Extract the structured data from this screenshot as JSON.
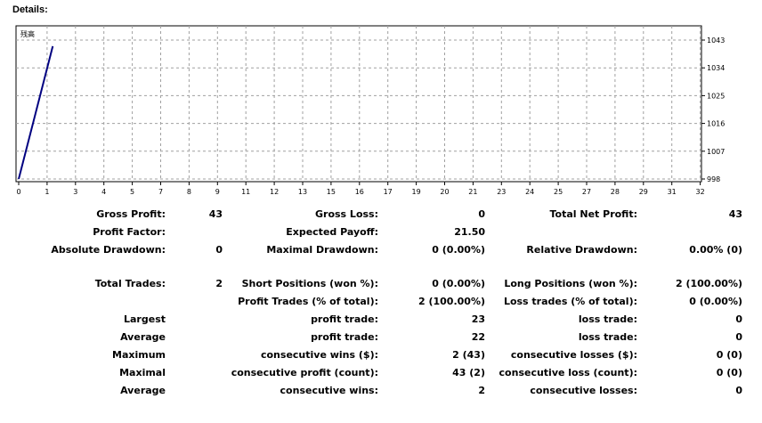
{
  "header": {
    "title": "Details:"
  },
  "chart_data": {
    "type": "line",
    "legend": "残高",
    "x": [
      0,
      1.6
    ],
    "series": [
      {
        "name": "残高",
        "values": [
          998,
          1041
        ],
        "color": "#000080"
      }
    ],
    "x_ticks": [
      "0",
      "1",
      "3",
      "4",
      "5",
      "7",
      "8",
      "9",
      "11",
      "12",
      "13",
      "15",
      "16",
      "17",
      "19",
      "20",
      "21",
      "23",
      "24",
      "25",
      "27",
      "28",
      "29",
      "31",
      "32"
    ],
    "y_ticks": [
      "1043",
      "1034",
      "1025",
      "1016",
      "1007",
      "998"
    ],
    "ylim": [
      998,
      1043
    ],
    "grid": true,
    "legend_position": "top-left"
  },
  "stats": {
    "gross_profit": {
      "label": "Gross Profit:",
      "value": "43"
    },
    "gross_loss": {
      "label": "Gross Loss:",
      "value": "0"
    },
    "total_net_profit": {
      "label": "Total Net Profit:",
      "value": "43"
    },
    "profit_factor": {
      "label": "Profit Factor:",
      "value": ""
    },
    "expected_payoff": {
      "label": "Expected Payoff:",
      "value": "21.50"
    },
    "absolute_drawdown": {
      "label": "Absolute Drawdown:",
      "value": "0"
    },
    "maximal_drawdown": {
      "label": "Maximal Drawdown:",
      "value": "0 (0.00%)"
    },
    "relative_drawdown": {
      "label": "Relative Drawdown:",
      "value": "0.00% (0)"
    },
    "total_trades": {
      "label": "Total Trades:",
      "value": "2"
    },
    "short_positions": {
      "label": "Short Positions (won %):",
      "value": "0 (0.00%)"
    },
    "long_positions": {
      "label": "Long Positions (won %):",
      "value": "2 (100.00%)"
    },
    "profit_trades": {
      "label": "Profit Trades (% of total):",
      "value": "2 (100.00%)"
    },
    "loss_trades": {
      "label": "Loss trades (% of total):",
      "value": "0 (0.00%)"
    },
    "largest": {
      "label": "Largest",
      "profit_label": "profit trade:",
      "profit_value": "23",
      "loss_label": "loss trade:",
      "loss_value": "0"
    },
    "average": {
      "label": "Average",
      "profit_label": "profit trade:",
      "profit_value": "22",
      "loss_label": "loss trade:",
      "loss_value": "0"
    },
    "maximum": {
      "label": "Maximum",
      "profit_label": "consecutive wins ($):",
      "profit_value": "2 (43)",
      "loss_label": "consecutive losses ($):",
      "loss_value": "0 (0)"
    },
    "maximal": {
      "label": "Maximal",
      "profit_label": "consecutive profit (count):",
      "profit_value": "43 (2)",
      "loss_label": "consecutive loss (count):",
      "loss_value": "0 (0)"
    },
    "average_consecutive": {
      "label": "Average",
      "profit_label": "consecutive wins:",
      "profit_value": "2",
      "loss_label": "consecutive losses:",
      "loss_value": "0"
    }
  }
}
